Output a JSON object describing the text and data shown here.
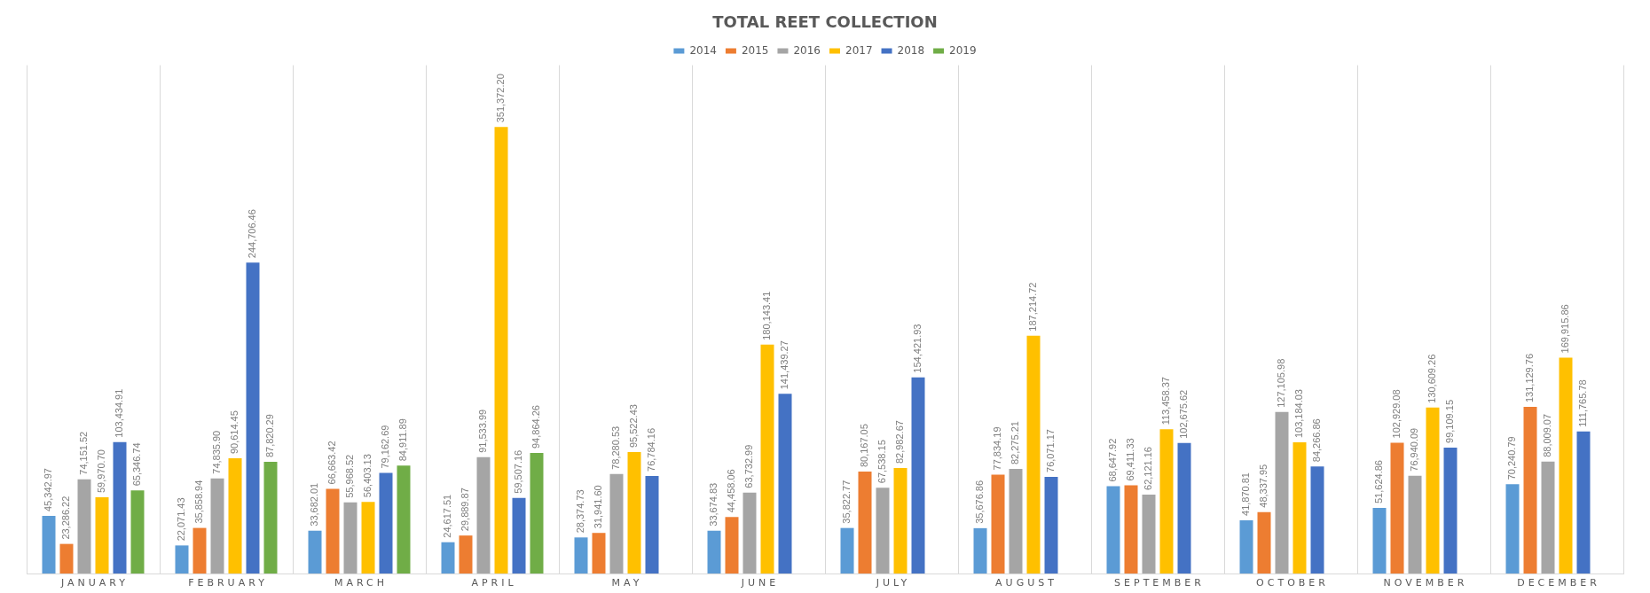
{
  "chart_data": {
    "type": "bar",
    "title": "TOTAL REET COLLECTION",
    "categories": [
      "JANUARY",
      "FEBRUARY",
      "MARCH",
      "APRIL",
      "MAY",
      "JUNE",
      "JULY",
      "AUGUST",
      "SEPTEMBER",
      "OCTOBER",
      "NOVEMBER",
      "DECEMBER"
    ],
    "series": [
      {
        "name": "2014",
        "color": "#5b9bd5",
        "values": [
          45342.97,
          22071.43,
          33682.01,
          24617.51,
          28374.73,
          33674.83,
          35822.77,
          35676.86,
          68647.92,
          41870.81,
          51624.86,
          70240.79
        ],
        "value_labels": [
          "45,342.97",
          "22,071.43",
          "33,682.01",
          "24,617.51",
          "28,374.73",
          "33,674.83",
          "35,822.77",
          "35,676.86",
          "68,647.92",
          "41,870.81",
          "51,624.86",
          "70,240.79"
        ]
      },
      {
        "name": "2015",
        "color": "#ed7d31",
        "values": [
          23286.22,
          35858.94,
          66663.42,
          29889.87,
          31941.6,
          44458.06,
          80167.05,
          77834.19,
          69411.33,
          48337.95,
          102929.08,
          131129.76
        ],
        "value_labels": [
          "23,286.22",
          "35,858.94",
          "66,663.42",
          "29,889.87",
          "31,941.60",
          "44,458.06",
          "80,167.05",
          "77,834.19",
          "69,411.33",
          "48,337.95",
          "102,929.08",
          "131,129.76"
        ]
      },
      {
        "name": "2016",
        "color": "#a5a5a5",
        "values": [
          74151.52,
          74835.9,
          55968.52,
          91533.99,
          78280.53,
          63732.99,
          67538.15,
          82275.21,
          62121.16,
          127105.98,
          76940.09,
          88009.07
        ],
        "value_labels": [
          "74,151.52",
          "74,835.90",
          "55,968.52",
          "91,533.99",
          "78,280.53",
          "63,732.99",
          "67,538.15",
          "82,275.21",
          "62,121.16",
          "127,105.98",
          "76,940.09",
          "88,009.07"
        ]
      },
      {
        "name": "2017",
        "color": "#ffc000",
        "values": [
          59970.7,
          90614.45,
          56403.13,
          351372.2,
          95522.43,
          180143.41,
          82982.67,
          187214.72,
          113458.37,
          103184.03,
          130609.26,
          169915.86
        ],
        "value_labels": [
          "59,970.70",
          "90,614.45",
          "56,403.13",
          "351,372.20",
          "95,522.43",
          "180,143.41",
          "82,982.67",
          "187,214.72",
          "113,458.37",
          "103,184.03",
          "130,609.26",
          "169,915.86"
        ]
      },
      {
        "name": "2018",
        "color": "#4472c4",
        "values": [
          103434.91,
          244706.46,
          79162.69,
          59507.16,
          76784.16,
          141439.27,
          154421.93,
          76071.17,
          102675.62,
          84266.86,
          99109.15,
          111765.78
        ],
        "value_labels": [
          "103,434.91",
          "244,706.46",
          "79,162.69",
          "59,507.16",
          "76,784.16",
          "141,439.27",
          "154,421.93",
          "76,071.17",
          "102,675.62",
          "84,266.86",
          "99,109.15",
          "111,765.78"
        ]
      },
      {
        "name": "2019",
        "color": "#70ad47",
        "values": [
          65346.74,
          87820.29,
          84911.89,
          94864.26,
          null,
          null,
          null,
          null,
          null,
          null,
          null,
          null
        ],
        "value_labels": [
          "65,346.74",
          "87,820.29",
          "84,911.89",
          "94,864.26",
          null,
          null,
          null,
          null,
          null,
          null,
          null,
          null
        ]
      }
    ],
    "legend": "top",
    "grid": "x"
  }
}
